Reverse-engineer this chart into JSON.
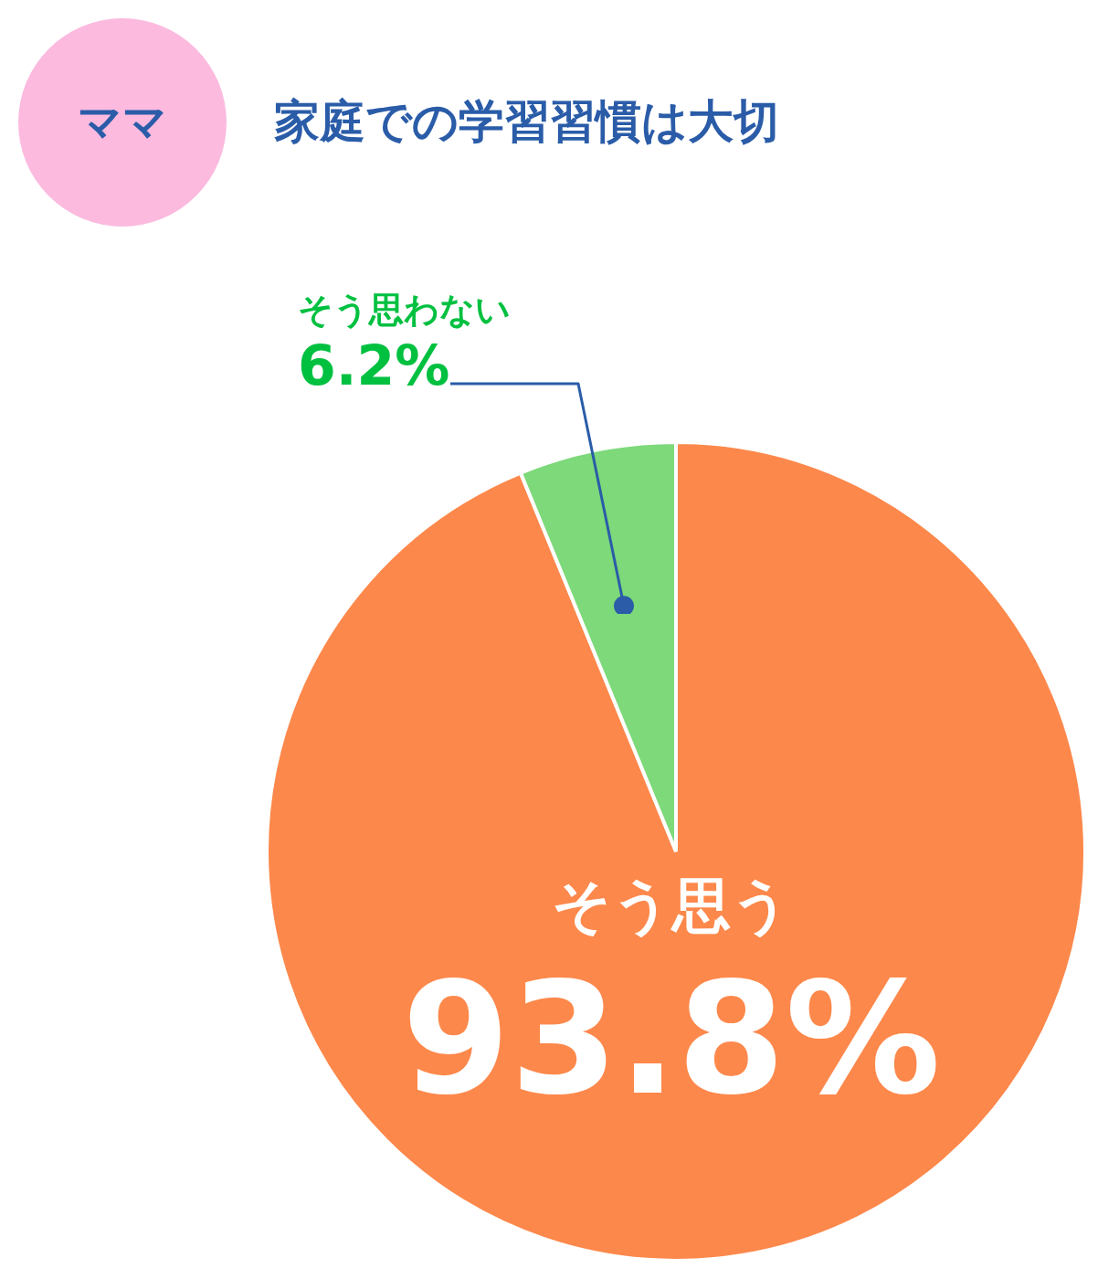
{
  "chart_data": {
    "type": "pie",
    "title": "家庭での学習習慣は大切",
    "subtitle": "ママ",
    "categories": [
      "そう思う",
      "そう思わない"
    ],
    "values": [
      93.8,
      6.2
    ],
    "colors": [
      "#fd884b",
      "#7dd97a"
    ],
    "value_labels": [
      "93.8%",
      "6.2%"
    ],
    "legend": false
  }
}
